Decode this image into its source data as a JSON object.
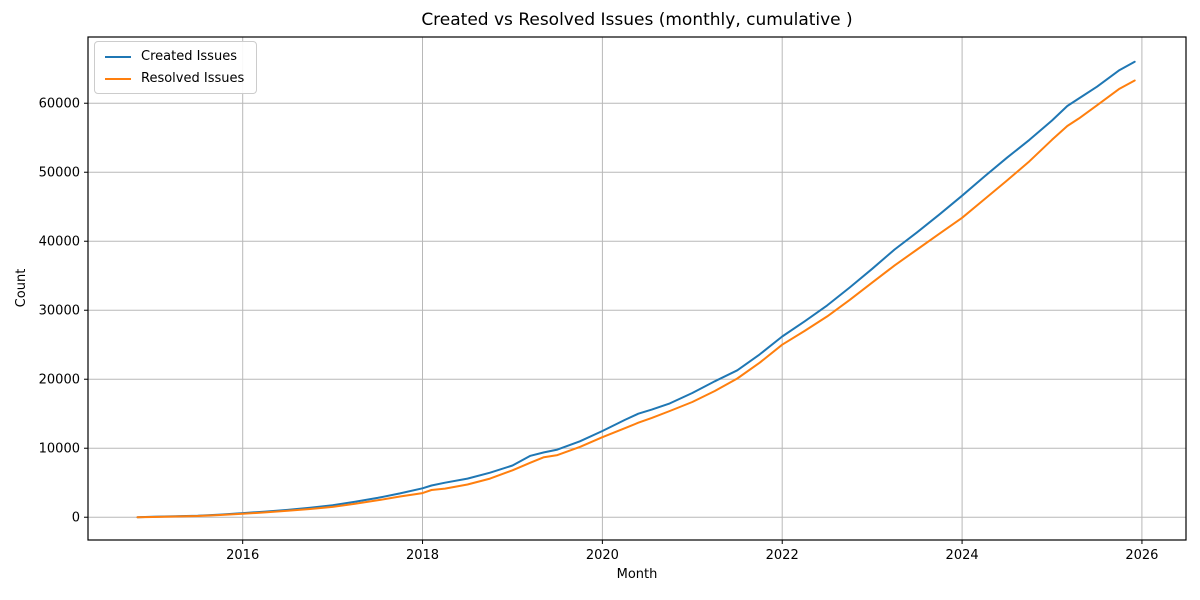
{
  "figure": {
    "background": "#ffffff"
  },
  "chart_data": {
    "type": "line",
    "title": "Created vs Resolved Issues (monthly, cumulative )",
    "xlabel": "Month",
    "ylabel": "Count",
    "grid": true,
    "grid_color": "#b8b8b8",
    "axis_color": "#000000",
    "legend_position": "top-left",
    "xlim": [
      2014.28,
      2026.49
    ],
    "ylim": [
      -3300,
      69600
    ],
    "xticks": {
      "values": [
        2016,
        2018,
        2020,
        2022,
        2024,
        2026
      ],
      "labels": [
        "2016",
        "2018",
        "2020",
        "2022",
        "2024",
        "2026"
      ]
    },
    "yticks": {
      "values": [
        0,
        10000,
        20000,
        30000,
        40000,
        50000,
        60000
      ],
      "labels": [
        "0",
        "10000",
        "20000",
        "30000",
        "40000",
        "50000",
        "60000"
      ]
    },
    "x": [
      2014.83,
      2015.0,
      2015.25,
      2015.5,
      2015.75,
      2016.0,
      2016.25,
      2016.5,
      2016.75,
      2017.0,
      2017.25,
      2017.5,
      2017.75,
      2018.0,
      2018.1,
      2018.25,
      2018.5,
      2018.75,
      2019.0,
      2019.2,
      2019.35,
      2019.5,
      2019.75,
      2020.0,
      2020.25,
      2020.4,
      2020.55,
      2020.75,
      2021.0,
      2021.25,
      2021.5,
      2021.75,
      2022.0,
      2022.25,
      2022.5,
      2022.75,
      2023.0,
      2023.25,
      2023.5,
      2023.75,
      2024.0,
      2024.25,
      2024.5,
      2024.75,
      2025.0,
      2025.17,
      2025.3,
      2025.5,
      2025.75,
      2025.92
    ],
    "series": [
      {
        "name": "Created Issues",
        "color": "#1f77b4",
        "values": [
          0,
          60,
          130,
          220,
          380,
          600,
          820,
          1060,
          1380,
          1750,
          2250,
          2800,
          3450,
          4200,
          4600,
          5000,
          5600,
          6450,
          7500,
          8900,
          9400,
          9800,
          11000,
          12500,
          14100,
          15000,
          15600,
          16500,
          18000,
          19700,
          21300,
          23600,
          26200,
          28400,
          30700,
          33300,
          36000,
          38800,
          41300,
          43900,
          46600,
          49400,
          52100,
          54700,
          57500,
          59600,
          60700,
          62400,
          64800,
          66000
        ]
      },
      {
        "name": "Resolved Issues",
        "color": "#ff7f0e",
        "values": [
          0,
          40,
          100,
          180,
          320,
          500,
          700,
          930,
          1200,
          1500,
          1950,
          2450,
          3000,
          3500,
          3950,
          4150,
          4750,
          5600,
          6800,
          7900,
          8700,
          9000,
          10200,
          11600,
          12900,
          13700,
          14400,
          15400,
          16700,
          18300,
          20100,
          22400,
          25000,
          27000,
          29100,
          31500,
          34000,
          36500,
          38800,
          41100,
          43400,
          46100,
          48800,
          51600,
          54700,
          56700,
          57800,
          59700,
          62100,
          63300
        ]
      }
    ]
  }
}
